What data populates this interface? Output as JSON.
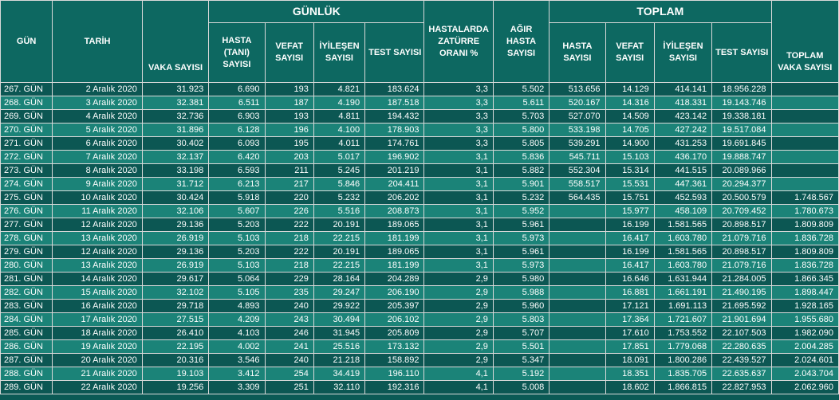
{
  "headers": {
    "gun": "GÜN",
    "tarih": "TARİH",
    "vaka": "VAKA SAYISI",
    "gunluk": "GÜNLÜK",
    "hasta_tani": "HASTA (TANI) SAYISI",
    "vefat": "VEFAT SAYISI",
    "iyilesen": "İYİLEŞEN SAYISI",
    "test": "TEST SAYISI",
    "zaturre": "HASTALARDA ZATÜRRE ORANI %",
    "agir": "AĞIR HASTA SAYISI",
    "toplam": "TOPLAM",
    "t_hasta": "HASTA SAYISI",
    "t_vefat": "VEFAT SAYISI",
    "t_iyilesen": "İYİLEŞEN SAYISI",
    "t_test": "TEST SAYISI",
    "t_vaka": "TOPLAM VAKA SAYISI"
  },
  "rows": [
    [
      "267. GÜN",
      "2 Aralık 2020",
      "31.923",
      "6.690",
      "193",
      "4.821",
      "183.624",
      "3,3",
      "5.502",
      "513.656",
      "14.129",
      "414.141",
      "18.956.228",
      ""
    ],
    [
      "268. GÜN",
      "3 Aralık 2020",
      "32.381",
      "6.511",
      "187",
      "4.190",
      "187.518",
      "3,3",
      "5.611",
      "520.167",
      "14.316",
      "418.331",
      "19.143.746",
      ""
    ],
    [
      "269. GÜN",
      "4 Aralık 2020",
      "32.736",
      "6.903",
      "193",
      "4.811",
      "194.432",
      "3,3",
      "5.703",
      "527.070",
      "14.509",
      "423.142",
      "19.338.181",
      ""
    ],
    [
      "270. GÜN",
      "5 Aralık 2020",
      "31.896",
      "6.128",
      "196",
      "4.100",
      "178.903",
      "3,3",
      "5.800",
      "533.198",
      "14.705",
      "427.242",
      "19.517.084",
      ""
    ],
    [
      "271. GÜN",
      "6 Aralık 2020",
      "30.402",
      "6.093",
      "195",
      "4.011",
      "174.761",
      "3,3",
      "5.805",
      "539.291",
      "14.900",
      "431.253",
      "19.691.845",
      ""
    ],
    [
      "272. GÜN",
      "7 Aralık 2020",
      "32.137",
      "6.420",
      "203",
      "5.017",
      "196.902",
      "3,1",
      "5.836",
      "545.711",
      "15.103",
      "436.170",
      "19.888.747",
      ""
    ],
    [
      "273. GÜN",
      "8 Aralık 2020",
      "33.198",
      "6.593",
      "211",
      "5.245",
      "201.219",
      "3,1",
      "5.882",
      "552.304",
      "15.314",
      "441.515",
      "20.089.966",
      ""
    ],
    [
      "274. GÜN",
      "9 Aralık 2020",
      "31.712",
      "6.213",
      "217",
      "5.846",
      "204.411",
      "3,1",
      "5.901",
      "558.517",
      "15.531",
      "447.361",
      "20.294.377",
      ""
    ],
    [
      "275. GÜN",
      "10 Aralık 2020",
      "30.424",
      "5.918",
      "220",
      "5.232",
      "206.202",
      "3,1",
      "5.232",
      "564.435",
      "15.751",
      "452.593",
      "20.500.579",
      "1.748.567"
    ],
    [
      "276. GÜN",
      "11 Aralık 2020",
      "32.106",
      "5.607",
      "226",
      "5.516",
      "208.873",
      "3,1",
      "5.952",
      "",
      "15.977",
      "458.109",
      "20.709.452",
      "1.780.673"
    ],
    [
      "277. GÜN",
      "12 Aralık 2020",
      "29.136",
      "5.203",
      "222",
      "20.191",
      "189.065",
      "3,1",
      "5.961",
      "",
      "16.199",
      "1.581.565",
      "20.898.517",
      "1.809.809"
    ],
    [
      "278. GÜN",
      "13 Aralık 2020",
      "26.919",
      "5.103",
      "218",
      "22.215",
      "181.199",
      "3,1",
      "5.973",
      "",
      "16.417",
      "1.603.780",
      "21.079.716",
      "1.836.728"
    ],
    [
      "279. GÜN",
      "12 Aralık 2020",
      "29.136",
      "5.203",
      "222",
      "20.191",
      "189.065",
      "3,1",
      "5.961",
      "",
      "16.199",
      "1.581.565",
      "20.898.517",
      "1.809.809"
    ],
    [
      "280. GÜN",
      "13 Aralık 2020",
      "26.919",
      "5.103",
      "218",
      "22.215",
      "181.199",
      "3,1",
      "5.973",
      "",
      "16.417",
      "1.603.780",
      "21.079.716",
      "1.836.728"
    ],
    [
      "281. GÜN",
      "14 Aralık 2020",
      "29.617",
      "5.064",
      "229",
      "28.164",
      "204.289",
      "2,9",
      "5.980",
      "",
      "16.646",
      "1.631.944",
      "21.284.005",
      "1.866.345"
    ],
    [
      "282. GÜN",
      "15 Aralık 2020",
      "32.102",
      "5.105",
      "235",
      "29.247",
      "206.190",
      "2,9",
      "5.988",
      "",
      "16.881",
      "1.661.191",
      "21.490.195",
      "1.898.447"
    ],
    [
      "283. GÜN",
      "16 Aralık 2020",
      "29.718",
      "4.893",
      "240",
      "29.922",
      "205.397",
      "2,9",
      "5.960",
      "",
      "17.121",
      "1.691.113",
      "21.695.592",
      "1.928.165"
    ],
    [
      "284. GÜN",
      "17 Aralık 2020",
      "27.515",
      "4.209",
      "243",
      "30.494",
      "206.102",
      "2,9",
      "5.803",
      "",
      "17.364",
      "1.721.607",
      "21.901.694",
      "1.955.680"
    ],
    [
      "285. GÜN",
      "18 Aralık 2020",
      "26.410",
      "4.103",
      "246",
      "31.945",
      "205.809",
      "2,9",
      "5.707",
      "",
      "17.610",
      "1.753.552",
      "22.107.503",
      "1.982.090"
    ],
    [
      "286. GÜN",
      "19 Aralık 2020",
      "22.195",
      "4.002",
      "241",
      "25.516",
      "173.132",
      "2,9",
      "5.501",
      "",
      "17.851",
      "1.779.068",
      "22.280.635",
      "2.004.285"
    ],
    [
      "287. GÜN",
      "20 Aralık 2020",
      "20.316",
      "3.546",
      "240",
      "21.218",
      "158.892",
      "2,9",
      "5.347",
      "",
      "18.091",
      "1.800.286",
      "22.439.527",
      "2.024.601"
    ],
    [
      "288. GÜN",
      "21 Aralık 2020",
      "19.103",
      "3.412",
      "254",
      "34.419",
      "196.110",
      "4,1",
      "5.192",
      "",
      "18.351",
      "1.835.705",
      "22.635.637",
      "2.043.704"
    ],
    [
      "289. GÜN",
      "22 Aralık 2020",
      "19.256",
      "3.309",
      "251",
      "32.110",
      "192.316",
      "4,1",
      "5.008",
      "",
      "18.602",
      "1.866.815",
      "22.827.953",
      "2.062.960"
    ]
  ]
}
